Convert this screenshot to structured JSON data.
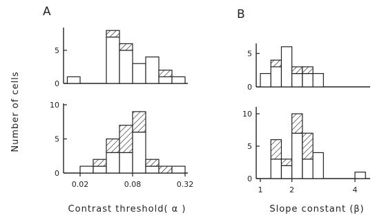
{
  "panel_labels": {
    "a": "A",
    "b": "B"
  },
  "shared_ylabel": "Number of cells",
  "legend": {
    "open": "",
    "hatched": ""
  },
  "chart_data": [
    {
      "id": "A_top",
      "type": "bar",
      "stacked": true,
      "xscale": "log",
      "xlabel": "",
      "ylabel": "",
      "ylim": [
        0,
        9
      ],
      "yticks": [
        0,
        5
      ],
      "xticks": [],
      "bin_edges": [
        0.01426,
        0.02,
        0.02828,
        0.04,
        0.05657,
        0.08,
        0.1131,
        0.16,
        0.2263,
        0.32
      ],
      "bins": [
        {
          "open": 1,
          "hatched": 0
        },
        {
          "open": 0,
          "hatched": 0
        },
        {
          "open": 0,
          "hatched": 0
        },
        {
          "open": 7,
          "hatched": 1
        },
        {
          "open": 5,
          "hatched": 1
        },
        {
          "open": 3,
          "hatched": 0
        },
        {
          "open": 4,
          "hatched": 0
        },
        {
          "open": 1,
          "hatched": 1
        },
        {
          "open": 1,
          "hatched": 0
        }
      ]
    },
    {
      "id": "A_bottom",
      "type": "bar",
      "stacked": true,
      "xscale": "log",
      "xlabel": "Contrast threshold( α )",
      "ylabel": "",
      "ylim": [
        0,
        10
      ],
      "yticks": [
        0,
        5,
        10
      ],
      "xticks": [
        {
          "value": 0.02,
          "label": "0.02"
        },
        {
          "value": 0.08,
          "label": "0.08"
        },
        {
          "value": 0.32,
          "label": "0.32"
        }
      ],
      "bin_edges": [
        0.02,
        0.02828,
        0.04,
        0.05657,
        0.08,
        0.1131,
        0.16,
        0.2263,
        0.32
      ],
      "bins": [
        {
          "open": 1,
          "hatched": 0
        },
        {
          "open": 1,
          "hatched": 1
        },
        {
          "open": 3,
          "hatched": 2
        },
        {
          "open": 3,
          "hatched": 4
        },
        {
          "open": 6,
          "hatched": 3
        },
        {
          "open": 1,
          "hatched": 1
        },
        {
          "open": 0,
          "hatched": 1
        },
        {
          "open": 1,
          "hatched": 0
        }
      ]
    },
    {
      "id": "B_top",
      "type": "bar",
      "stacked": true,
      "xscale": "linear",
      "xlabel": "",
      "ylabel": "",
      "ylim": [
        0,
        7
      ],
      "yticks": [
        0,
        5
      ],
      "xticks": [],
      "bin_edges": [
        1.0,
        1.333,
        1.667,
        2.0,
        2.333,
        2.667,
        3.0
      ],
      "bins": [
        {
          "open": 2,
          "hatched": 0
        },
        {
          "open": 3,
          "hatched": 1
        },
        {
          "open": 6,
          "hatched": 0
        },
        {
          "open": 2,
          "hatched": 1
        },
        {
          "open": 2,
          "hatched": 1
        },
        {
          "open": 2,
          "hatched": 0
        }
      ]
    },
    {
      "id": "B_bottom",
      "type": "bar",
      "stacked": true,
      "xscale": "linear",
      "xlabel": "Slope constant (β)",
      "ylabel": "",
      "ylim": [
        0,
        11
      ],
      "yticks": [
        0,
        5,
        10
      ],
      "xticks": [
        {
          "value": 1,
          "label": "1"
        },
        {
          "value": 2,
          "label": "2"
        },
        {
          "value": 4,
          "label": "4"
        }
      ],
      "bin_edges": [
        1.333,
        1.667,
        2.0,
        2.333,
        2.667,
        3.0,
        4.0,
        4.333
      ],
      "bins": [
        {
          "open": 3,
          "hatched": 3
        },
        {
          "open": 2,
          "hatched": 1
        },
        {
          "open": 7,
          "hatched": 3
        },
        {
          "open": 3,
          "hatched": 4
        },
        {
          "open": 4,
          "hatched": 0
        },
        {
          "open": 0,
          "hatched": 0
        },
        {
          "open": 1,
          "hatched": 0
        }
      ]
    }
  ]
}
